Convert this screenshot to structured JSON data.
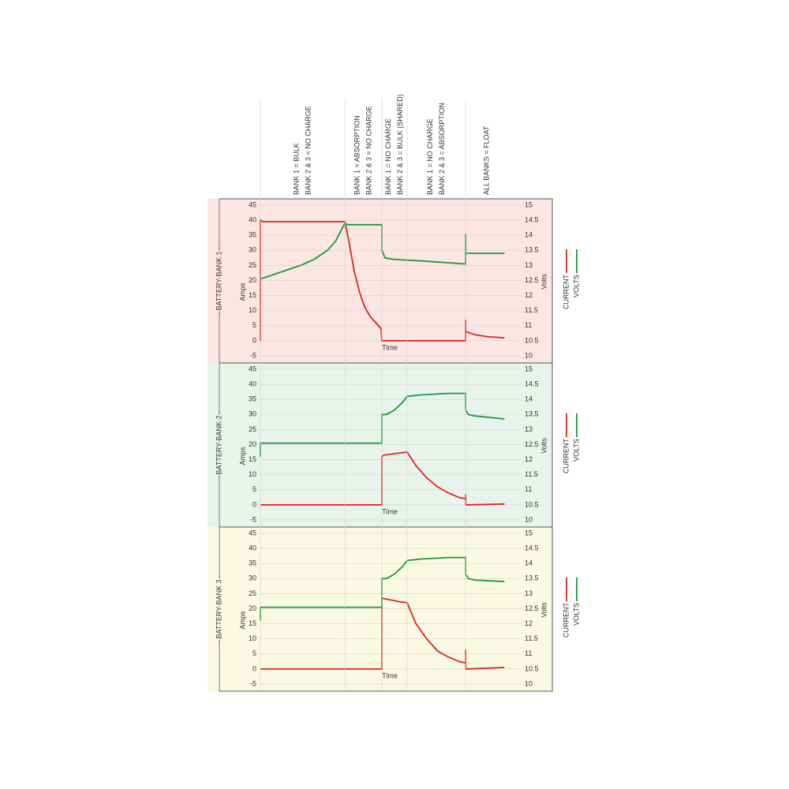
{
  "phases": [
    {
      "start": 0,
      "lines": [
        "BANK 1 = BULK",
        "BANK 2 & 3 = NO CHARGE"
      ]
    },
    {
      "start": 31.5,
      "lines": [
        "BANK 1 = ABSORPTION",
        "BANK 2 & 3 = NO CHARGE"
      ]
    },
    {
      "start": 45.3,
      "lines": [
        "BANK 1 = NO CHARGE",
        "BANK 2 & 3 = BULK (SHARED)"
      ]
    },
    {
      "start": 54.7,
      "lines": [
        "BANK 1 = NO CHARGE",
        "BANK 2 & 3 = ABSORPTION"
      ]
    },
    {
      "start": 76.5,
      "lines": [
        "ALL BANKS = FLOAT"
      ]
    }
  ],
  "chart_data": [
    {
      "type": "line",
      "title": "BATTERY BANK 1",
      "background": "#fbe6e4",
      "ylabel": "Amps",
      "y2label": "Volts",
      "xlabel": "Time",
      "xlim": [
        0,
        100
      ],
      "ylim": [
        -5,
        45
      ],
      "yticks": [
        -5,
        0,
        5,
        10,
        15,
        20,
        25,
        30,
        35,
        40,
        45
      ],
      "y2lim": [
        10,
        15
      ],
      "y2ticks": [
        10,
        10.5,
        11,
        11.5,
        12,
        12.5,
        13,
        13.5,
        14,
        14.5,
        15
      ],
      "grid": true,
      "series": [
        {
          "name": "CURRENT",
          "color": "#e2231a",
          "x": [
            0,
            0,
            1,
            31.5,
            33,
            35,
            37,
            39,
            41,
            43,
            45,
            45.3,
            76.5,
            76.5,
            76.6,
            80,
            85,
            91
          ],
          "values": [
            0,
            40,
            39.5,
            39.5,
            33,
            23,
            16,
            11,
            8,
            6,
            4,
            0,
            0,
            7,
            3,
            2,
            1.3,
            1
          ]
        },
        {
          "name": "VOLTS",
          "color": "#1a9a3e",
          "axis": "y2",
          "x": [
            0,
            5,
            10,
            15,
            20,
            25,
            28,
            31.5,
            32.5,
            45.3,
            45.3,
            46.5,
            50,
            60,
            76.5,
            76.5,
            76.6,
            91
          ],
          "values": [
            12.55,
            12.7,
            12.85,
            13.0,
            13.2,
            13.5,
            13.8,
            14.4,
            14.35,
            14.35,
            13.5,
            13.25,
            13.2,
            13.15,
            13.05,
            14.05,
            13.4,
            13.4
          ]
        }
      ]
    },
    {
      "type": "line",
      "title": "BATTERY BANK 2",
      "background": "#e8f3ec",
      "ylabel": "Amps",
      "y2label": "Volts",
      "xlabel": "Time",
      "xlim": [
        0,
        100
      ],
      "ylim": [
        -5,
        45
      ],
      "yticks": [
        -5,
        0,
        5,
        10,
        15,
        20,
        25,
        30,
        35,
        40,
        45
      ],
      "y2lim": [
        10,
        15
      ],
      "y2ticks": [
        10,
        10.5,
        11,
        11.5,
        12,
        12.5,
        13,
        13.5,
        14,
        14.5,
        15
      ],
      "grid": true,
      "series": [
        {
          "name": "CURRENT",
          "color": "#e2231a",
          "x": [
            0,
            45.3,
            45.3,
            46,
            50,
            54.7,
            58,
            62,
            66,
            70,
            74,
            76.5,
            76.5,
            76.6,
            91
          ],
          "values": [
            0,
            0,
            16,
            16.5,
            17,
            17.5,
            13,
            9,
            6,
            4,
            2.5,
            2,
            3.5,
            0,
            0.3
          ]
        },
        {
          "name": "VOLTS",
          "color": "#1a9a3e",
          "axis": "y2",
          "x": [
            0,
            0,
            45.3,
            45.3,
            47,
            50,
            53,
            54.7,
            60,
            70,
            76.5,
            76.5,
            77.5,
            80,
            91
          ],
          "values": [
            12.1,
            12.55,
            12.55,
            13.5,
            13.5,
            13.65,
            13.9,
            14.1,
            14.15,
            14.2,
            14.2,
            13.65,
            13.5,
            13.45,
            13.35
          ]
        }
      ]
    },
    {
      "type": "line",
      "title": "BATTERY BANK 3",
      "background": "#fafae3",
      "ylabel": "Amps",
      "y2label": "Volts",
      "xlabel": "Time",
      "xlim": [
        0,
        100
      ],
      "ylim": [
        -5,
        45
      ],
      "yticks": [
        -5,
        0,
        5,
        10,
        15,
        20,
        25,
        30,
        35,
        40,
        45
      ],
      "y2lim": [
        10,
        15
      ],
      "y2ticks": [
        10,
        10.5,
        11,
        11.5,
        12,
        12.5,
        13,
        13.5,
        14,
        14.5,
        15
      ],
      "grid": true,
      "series": [
        {
          "name": "CURRENT",
          "color": "#e2231a",
          "x": [
            0,
            45.3,
            45.3,
            48,
            52,
            54.7,
            58,
            62,
            66,
            70,
            74,
            76.5,
            76.5,
            76.6,
            91
          ],
          "values": [
            0,
            0,
            23.5,
            23,
            22.3,
            22,
            15,
            10,
            6,
            4,
            2.5,
            2,
            6.5,
            0,
            0.5
          ]
        },
        {
          "name": "VOLTS",
          "color": "#1a9a3e",
          "axis": "y2",
          "x": [
            0,
            0,
            45.3,
            45.3,
            47,
            50,
            53,
            54.7,
            60,
            70,
            76.5,
            76.5,
            77.5,
            80,
            91
          ],
          "values": [
            12.1,
            12.55,
            12.55,
            13.5,
            13.5,
            13.65,
            13.9,
            14.1,
            14.15,
            14.2,
            14.2,
            13.65,
            13.5,
            13.45,
            13.4
          ]
        }
      ]
    }
  ]
}
